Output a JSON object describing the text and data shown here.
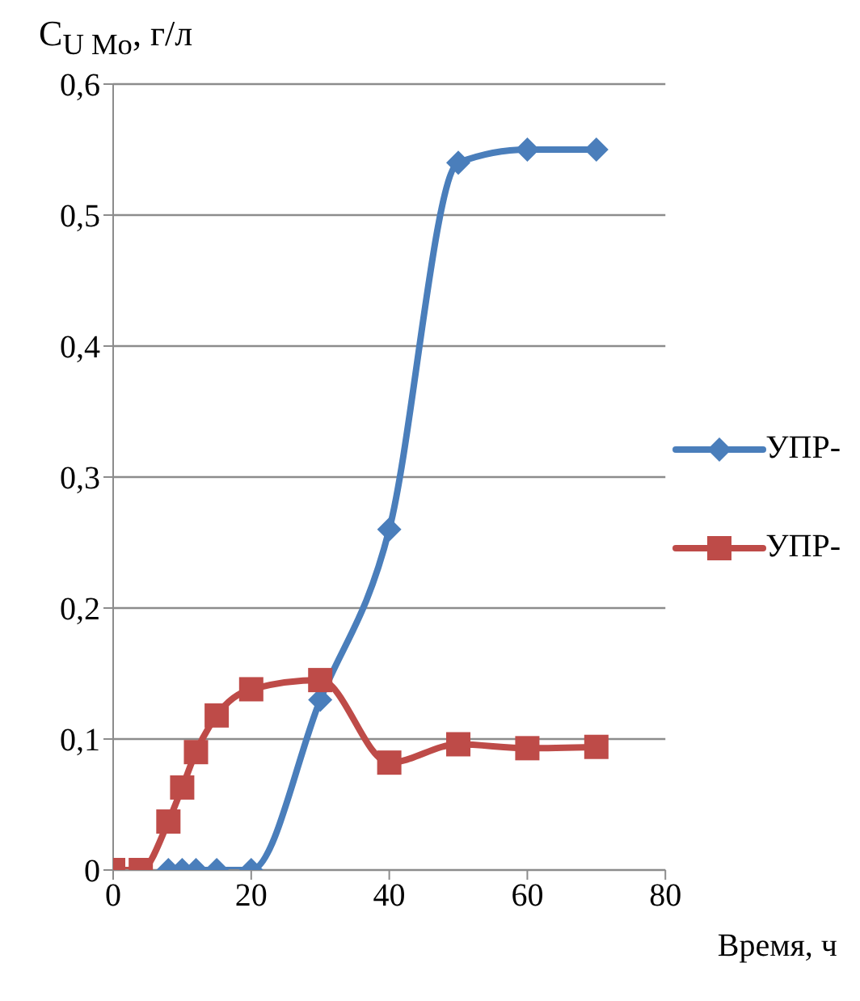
{
  "chart_data": {
    "type": "line",
    "ylabel": "C$_{U Mo}$, г/л",
    "xlabel": "Время, ч",
    "xlim": [
      0,
      80
    ],
    "xticks": [
      0,
      20,
      40,
      60,
      80
    ],
    "ylim": [
      0,
      0.6
    ],
    "yticks": [
      {
        "value": 0,
        "label": "0"
      },
      {
        "value": 0.1,
        "label": "0,1"
      },
      {
        "value": 0.2,
        "label": "0,2"
      },
      {
        "value": 0.3,
        "label": "0,3"
      },
      {
        "value": 0.4,
        "label": "0,4"
      },
      {
        "value": 0.5,
        "label": "0,5"
      },
      {
        "value": 0.6,
        "label": "0,6"
      }
    ],
    "grid": "y",
    "legend": "right",
    "series": [
      {
        "name": "УПР-",
        "color": "#4a7ebb",
        "marker": "diamond",
        "x": [
          8,
          10,
          12,
          15,
          20,
          30,
          40,
          50,
          60,
          70
        ],
        "values": [
          0,
          0,
          0,
          0,
          0,
          0.13,
          0.26,
          0.54,
          0.55,
          0.55
        ]
      },
      {
        "name": "УПР-",
        "color": "#be4b48",
        "marker": "square",
        "x": [
          0,
          4,
          8,
          10,
          12,
          15,
          20,
          30,
          40,
          50,
          60,
          70
        ],
        "values": [
          0,
          0,
          0.037,
          0.063,
          0.09,
          0.118,
          0.138,
          0.145,
          0.082,
          0.096,
          0.093,
          0.094
        ]
      }
    ]
  }
}
